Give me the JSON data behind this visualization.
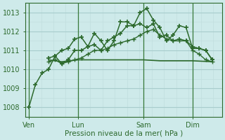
{
  "xlabel": "Pression niveau de la mer( hPa )",
  "bg_color": "#ceeaea",
  "grid_major_color": "#a8cccc",
  "grid_minor_color": "#c0dede",
  "line_color": "#2d6a2d",
  "vline_color": "#3a7a3a",
  "ylim": [
    1007.5,
    1013.5
  ],
  "yticks": [
    1008,
    1009,
    1010,
    1011,
    1012,
    1013
  ],
  "xlim": [
    -0.2,
    11.8
  ],
  "xtick_labels": [
    "Ven",
    "Lun",
    "Sam",
    "Dim"
  ],
  "xtick_pos": [
    0,
    3,
    7,
    10
  ],
  "vline_pos": [
    0,
    3,
    7,
    10
  ],
  "series": [
    {
      "x": [
        0,
        0.4,
        0.8,
        1.2,
        1.6,
        2.0,
        2.4,
        2.8,
        3.2,
        3.6,
        4.0,
        4.4,
        4.8,
        5.2,
        5.6,
        6.0,
        6.4,
        6.8,
        7.2,
        7.6,
        8.0,
        8.4,
        8.8,
        9.2,
        9.6,
        10.0,
        10.4,
        10.8,
        11.2
      ],
      "y": [
        1008.0,
        1009.2,
        1009.8,
        1010.0,
        1010.7,
        1011.0,
        1011.1,
        1011.6,
        1011.7,
        1011.2,
        1011.9,
        1011.5,
        1011.0,
        1011.5,
        1012.5,
        1012.5,
        1012.3,
        1013.0,
        1013.2,
        1012.6,
        1012.2,
        1011.5,
        1011.8,
        1012.3,
        1012.2,
        1011.1,
        1011.1,
        1011.0,
        1010.5
      ],
      "marker": "+",
      "markersize": 5,
      "linewidth": 1.1,
      "markeredgewidth": 1.2
    },
    {
      "x": [
        1.2,
        1.6,
        2.0,
        2.4,
        2.8,
        3.2,
        3.6,
        4.0,
        4.4,
        4.8,
        5.2,
        5.6,
        6.0,
        6.4,
        6.8,
        7.2,
        7.6,
        8.0,
        8.4,
        8.8,
        9.2,
        9.6,
        10.0,
        10.4,
        10.8,
        11.2
      ],
      "y": [
        1010.6,
        1010.7,
        1010.3,
        1010.5,
        1011.0,
        1011.0,
        1011.2,
        1011.3,
        1011.0,
        1011.5,
        1011.7,
        1011.9,
        1012.3,
        1012.3,
        1012.4,
        1012.2,
        1012.4,
        1011.7,
        1011.8,
        1011.5,
        1011.6,
        1011.5,
        1011.2,
        1011.1,
        1011.0,
        1010.5
      ],
      "marker": "+",
      "markersize": 5,
      "linewidth": 1.1,
      "markeredgewidth": 1.2
    },
    {
      "x": [
        1.2,
        1.6,
        2.0,
        2.4,
        2.8,
        3.2,
        3.6,
        4.0,
        4.4,
        4.8,
        5.2,
        5.6,
        6.0,
        6.4,
        6.8,
        7.2,
        7.6,
        8.0,
        8.4,
        8.8,
        9.2,
        9.6,
        10.0,
        10.4,
        10.8,
        11.2
      ],
      "y": [
        1010.4,
        1010.5,
        1010.3,
        1010.4,
        1010.5,
        1010.6,
        1010.8,
        1011.0,
        1011.0,
        1011.1,
        1011.3,
        1011.4,
        1011.5,
        1011.6,
        1011.8,
        1012.0,
        1012.1,
        1011.8,
        1011.6,
        1011.5,
        1011.5,
        1011.5,
        1011.0,
        1010.8,
        1010.5,
        1010.4
      ],
      "marker": "+",
      "markersize": 4,
      "linewidth": 1.0,
      "markeredgewidth": 1.0
    },
    {
      "x": [
        1.2,
        2.0,
        3.0,
        4.0,
        5.0,
        6.0,
        7.0,
        8.0,
        9.0,
        10.0,
        11.2
      ],
      "y": [
        1010.5,
        1010.4,
        1010.5,
        1010.5,
        1010.5,
        1010.5,
        1010.5,
        1010.45,
        1010.45,
        1010.45,
        1010.4
      ],
      "marker": null,
      "markersize": 0,
      "linewidth": 1.2,
      "markeredgewidth": 1.0
    }
  ]
}
